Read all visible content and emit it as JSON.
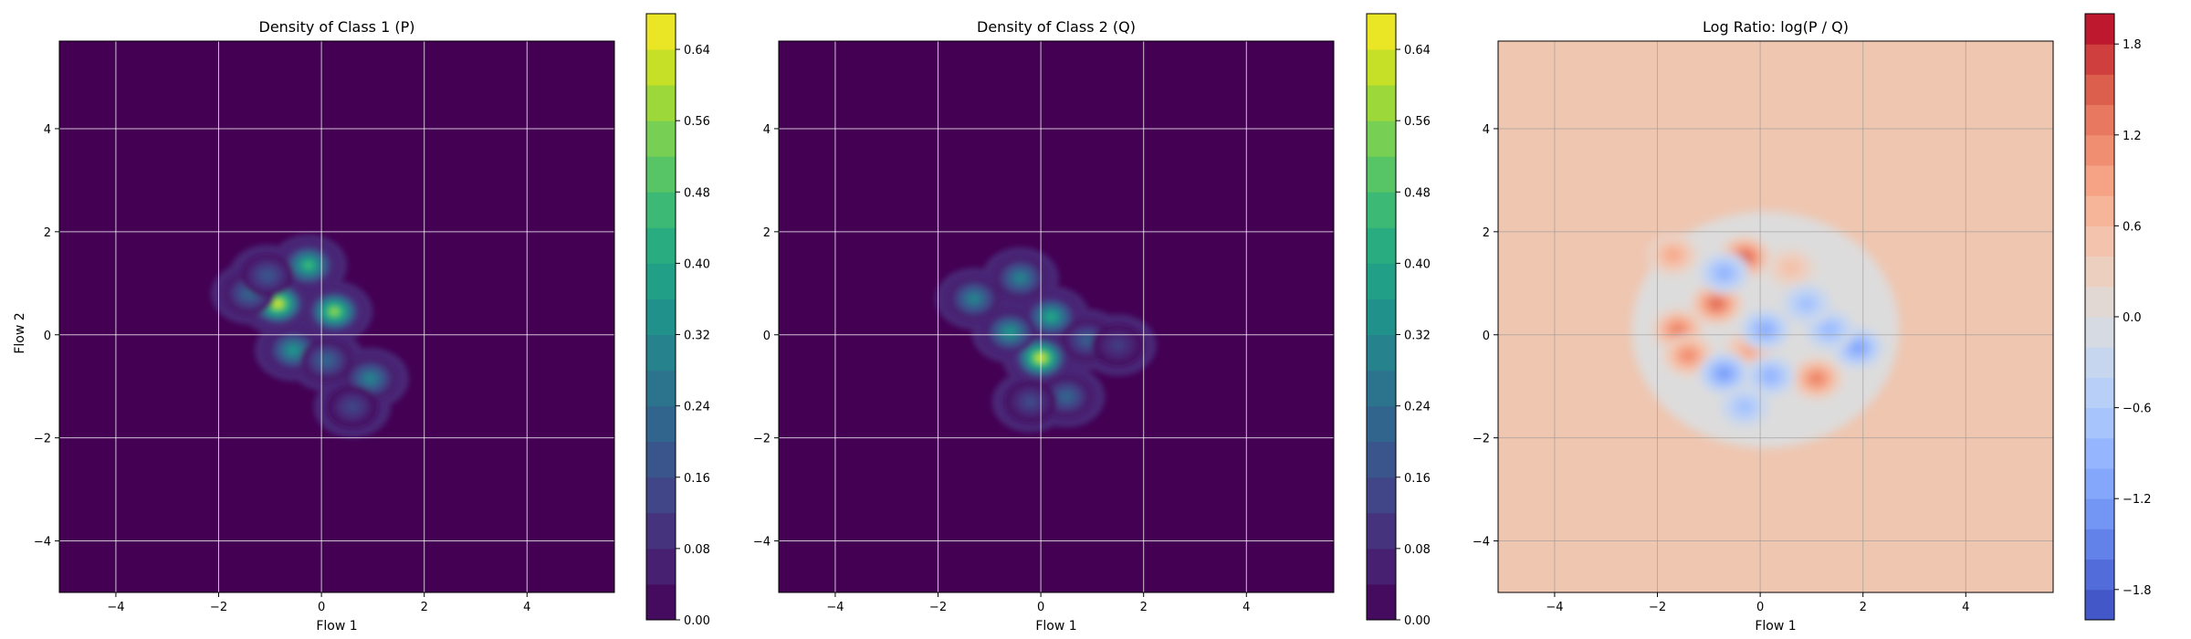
{
  "chart_data": [
    {
      "type": "heatmap",
      "title": "Density of Class 1 (P)",
      "xlabel": "Flow 1",
      "ylabel": "Flow 2",
      "xlim": [
        -5.1,
        5.7
      ],
      "ylim": [
        -5.0,
        5.7
      ],
      "xticks": [
        "−4",
        "−2",
        "0",
        "2",
        "4"
      ],
      "yticks": [
        "−4",
        "−2",
        "0",
        "2",
        "4"
      ],
      "grid": true,
      "colormap": "viridis",
      "background_color": "#440154",
      "colorbar": {
        "range": [
          0.0,
          0.68
        ],
        "ticks": [
          "0.00",
          "0.08",
          "0.16",
          "0.24",
          "0.32",
          "0.40",
          "0.48",
          "0.56",
          "0.64"
        ],
        "levels": 17
      },
      "blobs": [
        {
          "x": -0.85,
          "y": 0.6,
          "peak": 0.62
        },
        {
          "x": 0.25,
          "y": 0.45,
          "peak": 0.55
        },
        {
          "x": -0.25,
          "y": 1.35,
          "peak": 0.45
        },
        {
          "x": -0.55,
          "y": -0.3,
          "peak": 0.35
        },
        {
          "x": 0.95,
          "y": -0.85,
          "peak": 0.3
        },
        {
          "x": -1.4,
          "y": 0.8,
          "peak": 0.22
        },
        {
          "x": 0.1,
          "y": -0.5,
          "peak": 0.22
        },
        {
          "x": 0.6,
          "y": -1.4,
          "peak": 0.14
        },
        {
          "x": -1.05,
          "y": 1.15,
          "peak": 0.18
        }
      ]
    },
    {
      "type": "heatmap",
      "title": "Density of Class 2 (Q)",
      "xlabel": "Flow 1",
      "ylabel": "",
      "xlim": [
        -5.1,
        5.7
      ],
      "ylim": [
        -5.0,
        5.7
      ],
      "xticks": [
        "−4",
        "−2",
        "0",
        "2",
        "4"
      ],
      "yticks": [
        "−4",
        "−2",
        "0",
        "2",
        "4"
      ],
      "grid": true,
      "colormap": "viridis",
      "background_color": "#440154",
      "colorbar": {
        "range": [
          0.0,
          0.68
        ],
        "ticks": [
          "0.00",
          "0.08",
          "0.16",
          "0.24",
          "0.32",
          "0.40",
          "0.48",
          "0.56",
          "0.64"
        ],
        "levels": 17
      },
      "blobs": [
        {
          "x": 0.0,
          "y": -0.45,
          "peak": 0.62
        },
        {
          "x": 0.2,
          "y": 0.35,
          "peak": 0.4
        },
        {
          "x": -0.4,
          "y": 1.1,
          "peak": 0.3
        },
        {
          "x": -1.3,
          "y": 0.7,
          "peak": 0.3
        },
        {
          "x": -0.6,
          "y": 0.05,
          "peak": 0.35
        },
        {
          "x": 0.5,
          "y": -1.2,
          "peak": 0.22
        },
        {
          "x": 0.9,
          "y": -0.1,
          "peak": 0.2
        },
        {
          "x": 1.5,
          "y": -0.2,
          "peak": 0.12
        },
        {
          "x": -0.2,
          "y": -1.3,
          "peak": 0.15
        }
      ]
    },
    {
      "type": "heatmap",
      "title": "Log Ratio: log(P / Q)",
      "xlabel": "Flow 1",
      "ylabel": "",
      "xlim": [
        -5.1,
        5.7
      ],
      "ylim": [
        -5.0,
        5.7
      ],
      "xticks": [
        "−4",
        "−2",
        "0",
        "2",
        "4"
      ],
      "yticks": [
        "−4",
        "−2",
        "0",
        "2",
        "4"
      ],
      "grid": true,
      "colormap": "coolwarm",
      "background_color": "#efc6b0",
      "colorbar": {
        "range": [
          -2.0,
          2.0
        ],
        "ticks": [
          "−1.8",
          "−1.2",
          "−0.6",
          "0.0",
          "0.6",
          "1.2",
          "1.8"
        ],
        "levels": 20
      },
      "blobs": [
        {
          "x": -0.3,
          "y": 1.5,
          "peak": 1.6
        },
        {
          "x": -0.85,
          "y": 0.6,
          "peak": 1.5
        },
        {
          "x": -1.6,
          "y": 0.1,
          "peak": 1.3
        },
        {
          "x": -1.4,
          "y": -0.4,
          "peak": 1.2
        },
        {
          "x": 1.1,
          "y": -0.85,
          "peak": 1.3
        },
        {
          "x": -0.2,
          "y": -0.3,
          "peak": 0.9
        },
        {
          "x": -1.7,
          "y": 1.55,
          "peak": 0.9
        },
        {
          "x": 0.6,
          "y": 1.3,
          "peak": 0.6
        },
        {
          "x": -0.7,
          "y": 1.2,
          "peak": -1.0
        },
        {
          "x": 0.1,
          "y": 0.1,
          "peak": -1.1
        },
        {
          "x": -0.7,
          "y": -0.75,
          "peak": -1.3
        },
        {
          "x": 0.2,
          "y": -0.8,
          "peak": -1.0
        },
        {
          "x": 1.9,
          "y": -0.25,
          "peak": -1.2
        },
        {
          "x": 1.35,
          "y": 0.1,
          "peak": -0.9
        },
        {
          "x": -0.3,
          "y": -1.4,
          "peak": -0.8
        },
        {
          "x": 0.9,
          "y": 0.6,
          "peak": -0.8
        }
      ]
    }
  ]
}
